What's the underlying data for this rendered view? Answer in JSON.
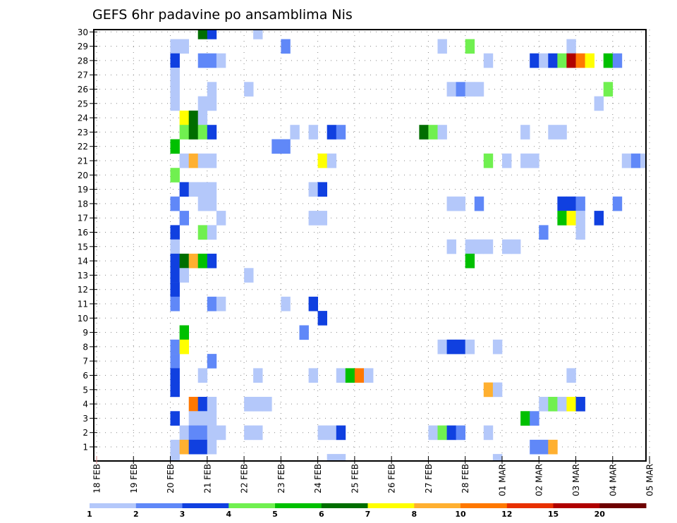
{
  "chart_data": {
    "type": "heatmap",
    "title": "GEFS 6hr padavine po ansamblima Nis",
    "xlabel": "",
    "ylabel": "",
    "y_ticks": [
      1,
      2,
      3,
      4,
      5,
      6,
      7,
      8,
      9,
      10,
      11,
      12,
      13,
      14,
      15,
      16,
      17,
      18,
      19,
      20,
      21,
      22,
      23,
      24,
      25,
      26,
      27,
      28,
      29,
      30
    ],
    "ylim": [
      0,
      30
    ],
    "x_ticks": [
      "18 FEB",
      "19 FEB",
      "20 FEB",
      "21 FEB",
      "22 FEB",
      "23 FEB",
      "24 FEB",
      "25 FEB",
      "26 FEB",
      "27 FEB",
      "28 FEB",
      "01 MAR",
      "02 MAR",
      "03 MAR",
      "04 MAR",
      "05 MAR"
    ],
    "x_step": "6hr",
    "steps_per_day": 4,
    "grid": true,
    "colorbar": {
      "labels": [
        "1",
        "2",
        "3",
        "4",
        "5",
        "6",
        "7",
        "8",
        "10",
        "12",
        "15",
        "20"
      ],
      "colors": [
        "#b4c8fa",
        "#6088f8",
        "#1040e0",
        "#70f050",
        "#00c000",
        "#006e00",
        "#ffff00",
        "#ffb030",
        "#ff7800",
        "#e83000",
        "#b00000",
        "#6e0000"
      ],
      "placement": "bottom"
    },
    "cells_note": "each cell: [member, time_step_index_from_18FEB_00, color_class 1-12]",
    "cells": [
      [
        30,
        11,
        6
      ],
      [
        30,
        12,
        3
      ],
      [
        30,
        17,
        1
      ],
      [
        29,
        8,
        1
      ],
      [
        29,
        9,
        1
      ],
      [
        29,
        20,
        2
      ],
      [
        29,
        37,
        1
      ],
      [
        29,
        40,
        4
      ],
      [
        29,
        51,
        1
      ],
      [
        28,
        8,
        3
      ],
      [
        28,
        11,
        2
      ],
      [
        28,
        12,
        2
      ],
      [
        28,
        13,
        1
      ],
      [
        28,
        42,
        1
      ],
      [
        28,
        47,
        3
      ],
      [
        28,
        48,
        1
      ],
      [
        28,
        49,
        3
      ],
      [
        28,
        50,
        4
      ],
      [
        28,
        51,
        11
      ],
      [
        28,
        52,
        9
      ],
      [
        28,
        53,
        7
      ],
      [
        28,
        55,
        5
      ],
      [
        28,
        56,
        2
      ],
      [
        27,
        8,
        1
      ],
      [
        26,
        8,
        1
      ],
      [
        26,
        12,
        1
      ],
      [
        26,
        16,
        1
      ],
      [
        26,
        38,
        1
      ],
      [
        26,
        39,
        2
      ],
      [
        26,
        40,
        1
      ],
      [
        26,
        41,
        1
      ],
      [
        26,
        55,
        4
      ],
      [
        25,
        8,
        1
      ],
      [
        25,
        11,
        1
      ],
      [
        25,
        12,
        1
      ],
      [
        25,
        54,
        1
      ],
      [
        24,
        9,
        7
      ],
      [
        24,
        10,
        6
      ],
      [
        24,
        11,
        1
      ],
      [
        23,
        9,
        4
      ],
      [
        23,
        10,
        6
      ],
      [
        23,
        11,
        4
      ],
      [
        23,
        12,
        3
      ],
      [
        23,
        21,
        1
      ],
      [
        23,
        23,
        1
      ],
      [
        23,
        25,
        3
      ],
      [
        23,
        26,
        2
      ],
      [
        23,
        35,
        6
      ],
      [
        23,
        36,
        4
      ],
      [
        23,
        37,
        1
      ],
      [
        23,
        46,
        1
      ],
      [
        23,
        49,
        1
      ],
      [
        23,
        50,
        1
      ],
      [
        22,
        8,
        5
      ],
      [
        22,
        19,
        2
      ],
      [
        22,
        20,
        2
      ],
      [
        21,
        9,
        1
      ],
      [
        21,
        10,
        8
      ],
      [
        21,
        11,
        1
      ],
      [
        21,
        12,
        1
      ],
      [
        21,
        24,
        7
      ],
      [
        21,
        25,
        1
      ],
      [
        21,
        42,
        4
      ],
      [
        21,
        44,
        1
      ],
      [
        21,
        46,
        1
      ],
      [
        21,
        47,
        1
      ],
      [
        21,
        57,
        1
      ],
      [
        21,
        58,
        2
      ],
      [
        21,
        59,
        1
      ],
      [
        20,
        8,
        4
      ],
      [
        19,
        9,
        3
      ],
      [
        19,
        10,
        1
      ],
      [
        19,
        11,
        1
      ],
      [
        19,
        12,
        1
      ],
      [
        19,
        23,
        1
      ],
      [
        19,
        24,
        3
      ],
      [
        18,
        8,
        2
      ],
      [
        18,
        11,
        1
      ],
      [
        18,
        12,
        1
      ],
      [
        18,
        38,
        1
      ],
      [
        18,
        39,
        1
      ],
      [
        18,
        41,
        2
      ],
      [
        18,
        50,
        3
      ],
      [
        18,
        51,
        3
      ],
      [
        18,
        52,
        2
      ],
      [
        18,
        56,
        2
      ],
      [
        17,
        9,
        2
      ],
      [
        17,
        13,
        1
      ],
      [
        17,
        23,
        1
      ],
      [
        17,
        24,
        1
      ],
      [
        17,
        50,
        5
      ],
      [
        17,
        51,
        7
      ],
      [
        17,
        52,
        1
      ],
      [
        17,
        54,
        3
      ],
      [
        16,
        8,
        3
      ],
      [
        16,
        11,
        4
      ],
      [
        16,
        12,
        1
      ],
      [
        16,
        48,
        2
      ],
      [
        16,
        52,
        1
      ],
      [
        15,
        8,
        1
      ],
      [
        15,
        38,
        1
      ],
      [
        15,
        40,
        1
      ],
      [
        15,
        41,
        1
      ],
      [
        15,
        42,
        1
      ],
      [
        15,
        44,
        1
      ],
      [
        15,
        45,
        1
      ],
      [
        14,
        8,
        3
      ],
      [
        14,
        9,
        6
      ],
      [
        14,
        10,
        8
      ],
      [
        14,
        11,
        5
      ],
      [
        14,
        12,
        3
      ],
      [
        14,
        40,
        5
      ],
      [
        13,
        8,
        3
      ],
      [
        13,
        9,
        1
      ],
      [
        13,
        16,
        1
      ],
      [
        12,
        8,
        3
      ],
      [
        11,
        8,
        2
      ],
      [
        11,
        12,
        2
      ],
      [
        11,
        13,
        1
      ],
      [
        11,
        20,
        1
      ],
      [
        11,
        23,
        3
      ],
      [
        10,
        24,
        3
      ],
      [
        9,
        9,
        5
      ],
      [
        9,
        22,
        2
      ],
      [
        8,
        8,
        2
      ],
      [
        8,
        9,
        7
      ],
      [
        8,
        37,
        1
      ],
      [
        8,
        38,
        3
      ],
      [
        8,
        39,
        3
      ],
      [
        8,
        40,
        1
      ],
      [
        8,
        43,
        1
      ],
      [
        7,
        8,
        2
      ],
      [
        7,
        12,
        2
      ],
      [
        6,
        8,
        3
      ],
      [
        6,
        11,
        1
      ],
      [
        6,
        17,
        1
      ],
      [
        6,
        23,
        1
      ],
      [
        6,
        26,
        1
      ],
      [
        6,
        27,
        5
      ],
      [
        6,
        28,
        9
      ],
      [
        6,
        29,
        1
      ],
      [
        6,
        51,
        1
      ],
      [
        5,
        8,
        3
      ],
      [
        5,
        42,
        8
      ],
      [
        5,
        43,
        1
      ],
      [
        4,
        10,
        9
      ],
      [
        4,
        11,
        3
      ],
      [
        4,
        12,
        1
      ],
      [
        4,
        16,
        1
      ],
      [
        4,
        17,
        1
      ],
      [
        4,
        18,
        1
      ],
      [
        4,
        48,
        1
      ],
      [
        4,
        49,
        4
      ],
      [
        4,
        50,
        1
      ],
      [
        4,
        51,
        7
      ],
      [
        4,
        52,
        3
      ],
      [
        3,
        8,
        3
      ],
      [
        3,
        10,
        1
      ],
      [
        3,
        11,
        1
      ],
      [
        3,
        12,
        1
      ],
      [
        3,
        46,
        5
      ],
      [
        3,
        47,
        2
      ],
      [
        2,
        9,
        1
      ],
      [
        2,
        10,
        2
      ],
      [
        2,
        11,
        2
      ],
      [
        2,
        12,
        1
      ],
      [
        2,
        13,
        1
      ],
      [
        2,
        16,
        1
      ],
      [
        2,
        17,
        1
      ],
      [
        2,
        24,
        1
      ],
      [
        2,
        25,
        1
      ],
      [
        2,
        26,
        3
      ],
      [
        2,
        36,
        1
      ],
      [
        2,
        37,
        4
      ],
      [
        2,
        38,
        3
      ],
      [
        2,
        39,
        2
      ],
      [
        2,
        42,
        1
      ],
      [
        1,
        8,
        1
      ],
      [
        1,
        9,
        8
      ],
      [
        1,
        10,
        3
      ],
      [
        1,
        11,
        3
      ],
      [
        1,
        12,
        1
      ],
      [
        1,
        47,
        2
      ],
      [
        1,
        48,
        2
      ],
      [
        1,
        49,
        8
      ],
      [
        0,
        8,
        1
      ],
      [
        0,
        25,
        1
      ],
      [
        0,
        26,
        1
      ],
      [
        0,
        43,
        1
      ]
    ]
  }
}
